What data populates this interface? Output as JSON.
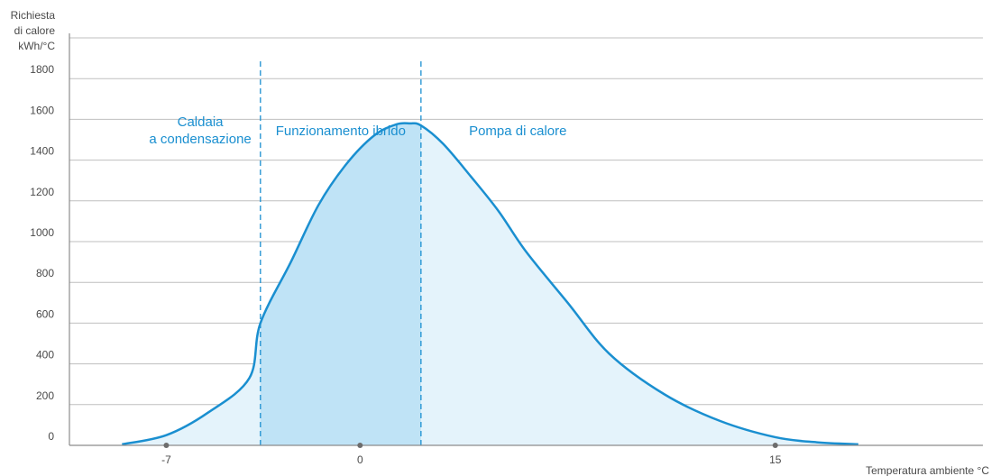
{
  "chart_data": {
    "type": "area",
    "ylabel_lines": [
      "Richiesta",
      "di calore",
      "kWh/°C"
    ],
    "xlabel": "Temperatura ambiente °C",
    "ylim": [
      0,
      2000
    ],
    "yticks": [
      "0",
      "200",
      "400",
      "600",
      "800",
      "1000",
      "1200",
      "1400",
      "1600",
      "1800"
    ],
    "xticks": [
      {
        "label": "-7",
        "value": -7
      },
      {
        "label": "0",
        "value": 0
      },
      {
        "label": "15",
        "value": 15
      }
    ],
    "xlim": [
      -10.5,
      22.5
    ],
    "grid": true,
    "boundaries": [
      -3.6,
      2.2
    ],
    "regions": [
      {
        "lines": [
          "Caldaia",
          "a condensazione"
        ]
      },
      {
        "lines": [
          "Funzionamento ibrido"
        ]
      },
      {
        "lines": [
          "Pompa di calore"
        ]
      }
    ],
    "curve": {
      "x": [
        -8.6,
        -7.0,
        -5.5,
        -4.0,
        -3.6,
        -2.5,
        -1.5,
        -0.5,
        0.5,
        1.3,
        1.8,
        2.2,
        3.0,
        4.0,
        5.0,
        6.0,
        7.5,
        9.0,
        11.0,
        13.0,
        15.0,
        16.5,
        18.0
      ],
      "y": [
        5,
        50,
        160,
        330,
        600,
        900,
        1180,
        1380,
        1520,
        1575,
        1580,
        1570,
        1480,
        1320,
        1150,
        950,
        700,
        450,
        250,
        120,
        40,
        15,
        5
      ]
    },
    "colors": {
      "curve": "#1a8fd0",
      "fill_light": "#e4f3fb",
      "fill_hybrid": "#bfe3f6",
      "grid": "#bfbfbf",
      "axis": "#8c8c8c",
      "text": "#4a4a4a",
      "region_text": "#1a8fd0",
      "tick_dot": "#6d6d6d"
    }
  }
}
